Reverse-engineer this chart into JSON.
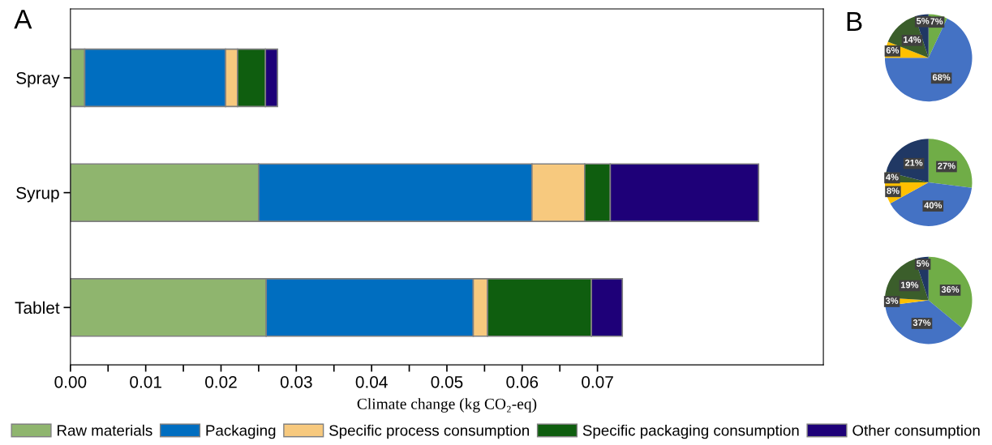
{
  "chart_data": [
    {
      "type": "bar",
      "title": "A",
      "orientation": "horizontal",
      "stacked": true,
      "categories": [
        "Spray",
        "Syrup",
        "Tablet"
      ],
      "xlabel": "Climate change (kg CO₂-eq)",
      "xlim": [
        0,
        0.1
      ],
      "xticks": [
        {
          "value": 0,
          "label": "0.00"
        },
        {
          "value": 0.005,
          "label": null
        },
        {
          "value": 0.01,
          "label": "0.01"
        },
        {
          "value": 0.015,
          "label": null
        },
        {
          "value": 0.02,
          "label": "0.02"
        },
        {
          "value": 0.025,
          "label": null
        },
        {
          "value": 0.03,
          "label": "0.03"
        },
        {
          "value": 0.035,
          "label": null
        },
        {
          "value": 0.04,
          "label": "0.04"
        },
        {
          "value": 0.045,
          "label": null
        },
        {
          "value": 0.05,
          "label": "0.05"
        },
        {
          "value": 0.055,
          "label": null
        },
        {
          "value": 0.06,
          "label": "0.06"
        },
        {
          "value": 0.065,
          "label": null
        },
        {
          "value": 0.07,
          "label": "0.07"
        }
      ],
      "legend": "bottom",
      "grid": false,
      "series": [
        {
          "name": "Raw materials",
          "color": "#8fb56e",
          "values": [
            0.0019,
            0.025,
            0.026
          ]
        },
        {
          "name": "Packaging",
          "color": "#006ec0",
          "values": [
            0.0187,
            0.0363,
            0.0275
          ]
        },
        {
          "name": "Specific process consumption",
          "color": "#f7c97e",
          "values": [
            0.0016,
            0.007,
            0.0019
          ]
        },
        {
          "name": "Specific packaging consumption",
          "color": "#0f5e0f",
          "values": [
            0.0037,
            0.0034,
            0.0138
          ]
        },
        {
          "name": "Other consumption",
          "color": "#1e0078",
          "values": [
            0.0016,
            0.0197,
            0.0041
          ]
        }
      ]
    },
    {
      "type": "pie",
      "title": "B",
      "categories": [
        null,
        null,
        null,
        null,
        null
      ],
      "values": [
        7,
        68,
        6,
        14,
        5
      ],
      "value_labels": [
        "7%",
        "68%",
        "6%",
        "14%",
        "5%"
      ],
      "colors": [
        "#70ad47",
        "#4472c4",
        "#ffc000",
        "#3b5e2b",
        "#203864"
      ]
    },
    {
      "type": "pie",
      "categories": [
        null,
        null,
        null,
        null,
        null
      ],
      "values": [
        27,
        40,
        8,
        4,
        21
      ],
      "value_labels": [
        "27%",
        "40%",
        "8%",
        "4%",
        "21%"
      ],
      "colors": [
        "#70ad47",
        "#4472c4",
        "#ffc000",
        "#3b5e2b",
        "#203864"
      ]
    },
    {
      "type": "pie",
      "categories": [
        null,
        null,
        null,
        null,
        null
      ],
      "values": [
        36,
        37,
        3,
        19,
        5
      ],
      "value_labels": [
        "36%",
        "37%",
        "3%",
        "19%",
        "5%"
      ],
      "colors": [
        "#70ad47",
        "#4472c4",
        "#ffc000",
        "#3b5e2b",
        "#203864"
      ]
    }
  ]
}
